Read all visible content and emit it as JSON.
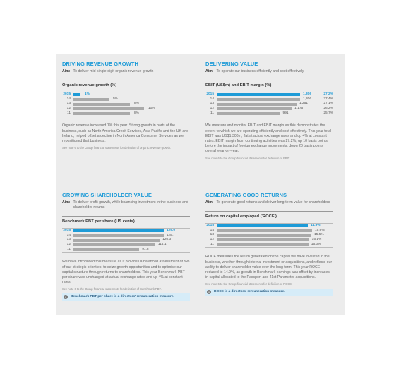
{
  "sections": [
    {
      "title": "DRIVING REVENUE GROWTH",
      "aim_label": "Aim:",
      "aim": "To deliver mid single-digit organic revenue growth",
      "chart_title": "Organic revenue growth (%)",
      "rows": [
        {
          "year": "2015",
          "label": "1%",
          "value": 1
        },
        {
          "year": "14",
          "label": "5%",
          "value": 5
        },
        {
          "year": "13",
          "label": "8%",
          "value": 8
        },
        {
          "year": "12",
          "label": "10%",
          "value": 10
        },
        {
          "year": "11",
          "label": "8%",
          "value": 8
        }
      ],
      "max": 10,
      "body": "Organic revenue increased 1% this year. Strong growth in parts of the business, such as North America Credit Services, Asia Pacific and the UK and Ireland, helped offset a decline in North America Consumer Services as we repositioned that business.",
      "note": "See note 6 to the Group financial statements for definition of organic revenue growth."
    },
    {
      "title": "DELIVERING VALUE",
      "aim_label": "Aim:",
      "aim": "To operate our business efficiently and cost effectively",
      "chart_title": "EBIT (US$m) and EBIT margin (%)",
      "rows": [
        {
          "year": "2015",
          "label": "1,306",
          "pct": "27.2%",
          "value": 1306
        },
        {
          "year": "14",
          "label": "1,306",
          "pct": "27.4%",
          "value": 1306
        },
        {
          "year": "13",
          "label": "1,251",
          "pct": "27.1%",
          "value": 1251
        },
        {
          "year": "12",
          "label": "1,175",
          "pct": "26.2%",
          "value": 1175
        },
        {
          "year": "11",
          "label": "991",
          "pct": "25.7%",
          "value": 991
        }
      ],
      "max": 1306,
      "body": "We measure and monitor EBIT and EBIT margin as this demonstrates the extent to which we are operating efficiently and cost effectively. This year total EBIT was US$1,306m, flat at actual exchange rates and up 4% at constant rates. EBIT margin from continuing activities was 27.2%, up 10 basis points before the impact of foreign exchange movements, down 20 basis points overall year-on-year.",
      "note": "See note 6 to the Group financial statements for definition of EBIT."
    },
    {
      "title": "GROWING SHAREHOLDER VALUE",
      "aim_label": "Aim:",
      "aim": "To deliver profit growth, while balancing investment in the business and shareholder returns",
      "chart_title": "Benchmark PBT per share (US cents)",
      "rows": [
        {
          "year": "2015",
          "label": "126.0",
          "value": 126.0
        },
        {
          "year": "14",
          "label": "125.7",
          "value": 125.7
        },
        {
          "year": "13",
          "label": "120.3",
          "value": 120.3
        },
        {
          "year": "12",
          "label": "114.1",
          "value": 114.1
        },
        {
          "year": "11",
          "label": "91.8",
          "value": 91.8
        }
      ],
      "max": 126.0,
      "body": "We have introduced this measure as it provides a balanced assessment of two of our strategic priorities: to seize growth opportunities and to optimise our capital structure through returns to shareholders. This year Benchmark PBT per share was unchanged at actual exchange rates and up 4% at constant rates.",
      "note": "See note 6 to the Group financial statements for definition of Benchmark PBT.",
      "callout": "Benchmark PBT per share is a directors' remuneration measure."
    },
    {
      "title": "GENERATING GOOD RETURNS",
      "aim_label": "Aim:",
      "aim": "To generate good returns and deliver long-term value for shareholders",
      "chart_title": "Return on capital employed ('ROCE')",
      "rows": [
        {
          "year": "2015",
          "label": "14.9%",
          "value": 14.9
        },
        {
          "year": "14",
          "label": "15.6%",
          "value": 15.6
        },
        {
          "year": "13",
          "label": "15.5%",
          "value": 15.5
        },
        {
          "year": "12",
          "label": "15.1%",
          "value": 15.1
        },
        {
          "year": "11",
          "label": "15.0%",
          "value": 15.0
        }
      ],
      "max": 15.6,
      "body": "ROCE measures the return generated on the capital we have invested in the business, whether through internal investment or acquisitions, and reflects our ability to deliver shareholder value over the long term. This year ROCE reduced to 14.9%, as growth in Benchmark earnings was offset by increases in capital allocated to the Passport and 41st Parameter acquisitions.",
      "note": "See note 6 to the Group financial statements for definition of ROCE.",
      "callout": "ROCE is a directors' remuneration measure."
    }
  ]
}
